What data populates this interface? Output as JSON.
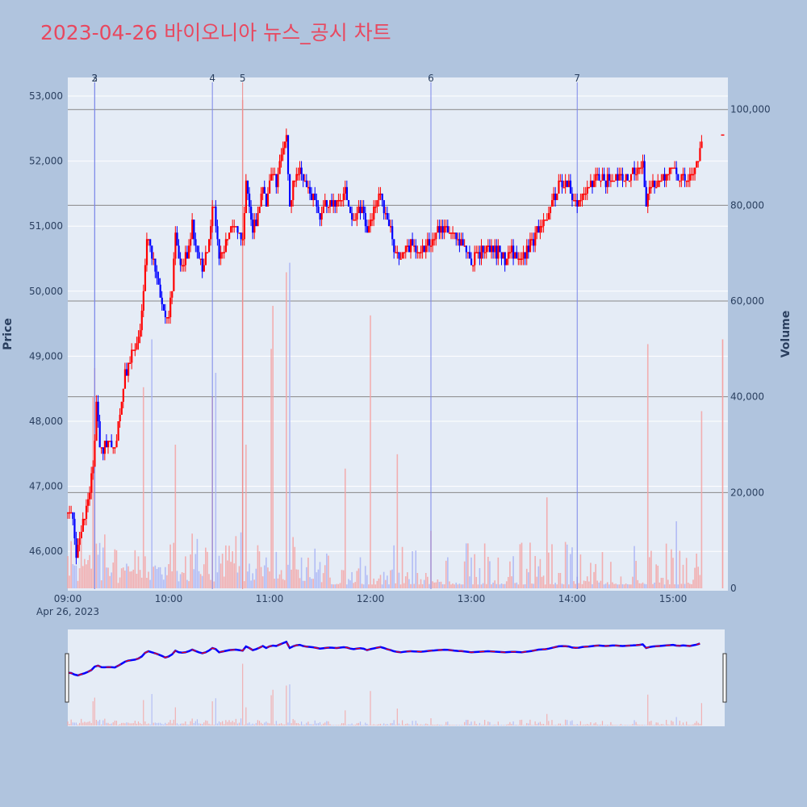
{
  "chart_data": {
    "type": "candlestick",
    "title": "2023-04-26 바이오니아 뉴스_공시 차트",
    "ylabel": "Price",
    "y2label": "Volume",
    "date_label": "Apr 26, 2023",
    "x_range": [
      "09:00",
      "15:30"
    ],
    "x_ticks": [
      "09:00",
      "10:00",
      "11:00",
      "12:00",
      "13:00",
      "14:00",
      "15:00"
    ],
    "price_range": [
      45400,
      53200
    ],
    "price_ticks": [
      "46,000",
      "47,000",
      "48,000",
      "49,000",
      "50,000",
      "51,000",
      "52,000",
      "53,000"
    ],
    "volume_range": [
      0,
      107000
    ],
    "volume_ticks": [
      "0",
      "20,000",
      "40,000",
      "60,000",
      "80,000",
      "100,000"
    ],
    "news_markers": [
      {
        "label": "3",
        "time": "09:16"
      },
      {
        "label": "2",
        "time": "09:16"
      },
      {
        "label": "4",
        "time": "10:26"
      },
      {
        "label": "5",
        "time": "10:44"
      },
      {
        "label": "6",
        "time": "12:36"
      },
      {
        "label": "7",
        "time": "14:03"
      }
    ],
    "price_path": [
      [
        "09:00",
        46600
      ],
      [
        "09:03",
        46500
      ],
      [
        "09:05",
        46000
      ],
      [
        "09:07",
        46200
      ],
      [
        "09:10",
        46500
      ],
      [
        "09:13",
        46900
      ],
      [
        "09:15",
        47300
      ],
      [
        "09:17",
        48200
      ],
      [
        "09:19",
        47700
      ],
      [
        "09:21",
        47600
      ],
      [
        "09:25",
        47700
      ],
      [
        "09:28",
        47600
      ],
      [
        "09:31",
        48100
      ],
      [
        "09:34",
        48700
      ],
      [
        "09:36",
        48900
      ],
      [
        "09:40",
        49100
      ],
      [
        "09:43",
        49400
      ],
      [
        "09:45",
        50000
      ],
      [
        "09:47",
        50800
      ],
      [
        "09:50",
        50500
      ],
      [
        "09:53",
        50200
      ],
      [
        "09:56",
        49800
      ],
      [
        "09:58",
        49500
      ],
      [
        "10:00",
        49700
      ],
      [
        "10:02",
        50100
      ],
      [
        "10:04",
        50800
      ],
      [
        "10:06",
        50500
      ],
      [
        "10:09",
        50400
      ],
      [
        "10:12",
        50700
      ],
      [
        "10:14",
        51000
      ],
      [
        "10:17",
        50600
      ],
      [
        "10:20",
        50300
      ],
      [
        "10:23",
        50600
      ],
      [
        "10:26",
        51300
      ],
      [
        "10:28",
        51100
      ],
      [
        "10:30",
        50500
      ],
      [
        "10:33",
        50700
      ],
      [
        "10:36",
        50900
      ],
      [
        "10:40",
        51000
      ],
      [
        "10:44",
        50800
      ],
      [
        "10:46",
        51600
      ],
      [
        "10:48",
        51300
      ],
      [
        "10:50",
        50900
      ],
      [
        "10:53",
        51200
      ],
      [
        "10:56",
        51700
      ],
      [
        "10:58",
        51300
      ],
      [
        "11:01",
        51800
      ],
      [
        "11:04",
        51700
      ],
      [
        "11:07",
        52100
      ],
      [
        "11:10",
        52500
      ],
      [
        "11:12",
        51300
      ],
      [
        "11:15",
        51800
      ],
      [
        "11:18",
        51900
      ],
      [
        "11:21",
        51600
      ],
      [
        "11:25",
        51500
      ],
      [
        "11:30",
        51200
      ],
      [
        "11:35",
        51400
      ],
      [
        "11:40",
        51300
      ],
      [
        "11:45",
        51500
      ],
      [
        "11:48",
        51200
      ],
      [
        "11:50",
        51100
      ],
      [
        "11:55",
        51300
      ],
      [
        "11:58",
        50900
      ],
      [
        "12:00",
        51100
      ],
      [
        "12:03",
        51300
      ],
      [
        "12:06",
        51500
      ],
      [
        "12:10",
        51100
      ],
      [
        "12:15",
        50600
      ],
      [
        "12:18",
        50500
      ],
      [
        "12:23",
        50700
      ],
      [
        "12:30",
        50600
      ],
      [
        "12:36",
        50800
      ],
      [
        "12:40",
        50900
      ],
      [
        "12:45",
        51000
      ],
      [
        "12:50",
        50800
      ],
      [
        "12:55",
        50700
      ],
      [
        "13:00",
        50500
      ],
      [
        "13:05",
        50600
      ],
      [
        "13:10",
        50700
      ],
      [
        "13:15",
        50600
      ],
      [
        "13:20",
        50500
      ],
      [
        "13:25",
        50600
      ],
      [
        "13:30",
        50500
      ],
      [
        "13:35",
        50700
      ],
      [
        "13:40",
        51000
      ],
      [
        "13:45",
        51100
      ],
      [
        "13:50",
        51500
      ],
      [
        "13:53",
        51700
      ],
      [
        "13:58",
        51600
      ],
      [
        "14:00",
        51400
      ],
      [
        "14:03",
        51300
      ],
      [
        "14:06",
        51500
      ],
      [
        "14:10",
        51600
      ],
      [
        "14:15",
        51800
      ],
      [
        "14:20",
        51700
      ],
      [
        "14:25",
        51800
      ],
      [
        "14:30",
        51700
      ],
      [
        "14:36",
        51800
      ],
      [
        "14:40",
        51900
      ],
      [
        "14:42",
        52000
      ],
      [
        "14:44",
        51300
      ],
      [
        "14:46",
        51500
      ],
      [
        "14:48",
        51600
      ],
      [
        "14:52",
        51700
      ],
      [
        "14:56",
        51800
      ],
      [
        "15:00",
        51900
      ],
      [
        "15:03",
        51700
      ],
      [
        "15:06",
        51800
      ],
      [
        "15:10",
        51700
      ],
      [
        "15:13",
        51900
      ],
      [
        "15:15",
        52000
      ],
      [
        "15:17",
        52300
      ]
    ],
    "volume_spikes": [
      [
        "09:15",
        40000
      ],
      [
        "09:16",
        46000
      ],
      [
        "09:45",
        42000
      ],
      [
        "09:50",
        52000
      ],
      [
        "10:04",
        30000
      ],
      [
        "10:26",
        40000
      ],
      [
        "10:28",
        45000
      ],
      [
        "10:44",
        102000
      ],
      [
        "10:46",
        30000
      ],
      [
        "11:01",
        50000
      ],
      [
        "11:02",
        59000
      ],
      [
        "11:10",
        66000
      ],
      [
        "11:12",
        68000
      ],
      [
        "11:45",
        25000
      ],
      [
        "12:00",
        57000
      ],
      [
        "12:16",
        28000
      ],
      [
        "12:36",
        12000
      ],
      [
        "13:45",
        19000
      ],
      [
        "14:45",
        51000
      ],
      [
        "15:02",
        14000
      ],
      [
        "15:17",
        37000
      ],
      [
        "15:30",
        52000
      ]
    ]
  },
  "colors": {
    "up": "#ff0000",
    "down": "#0000ff",
    "background": "#b0c4de",
    "plot_bg": "#e5ecf6",
    "title": "#e8485f"
  }
}
